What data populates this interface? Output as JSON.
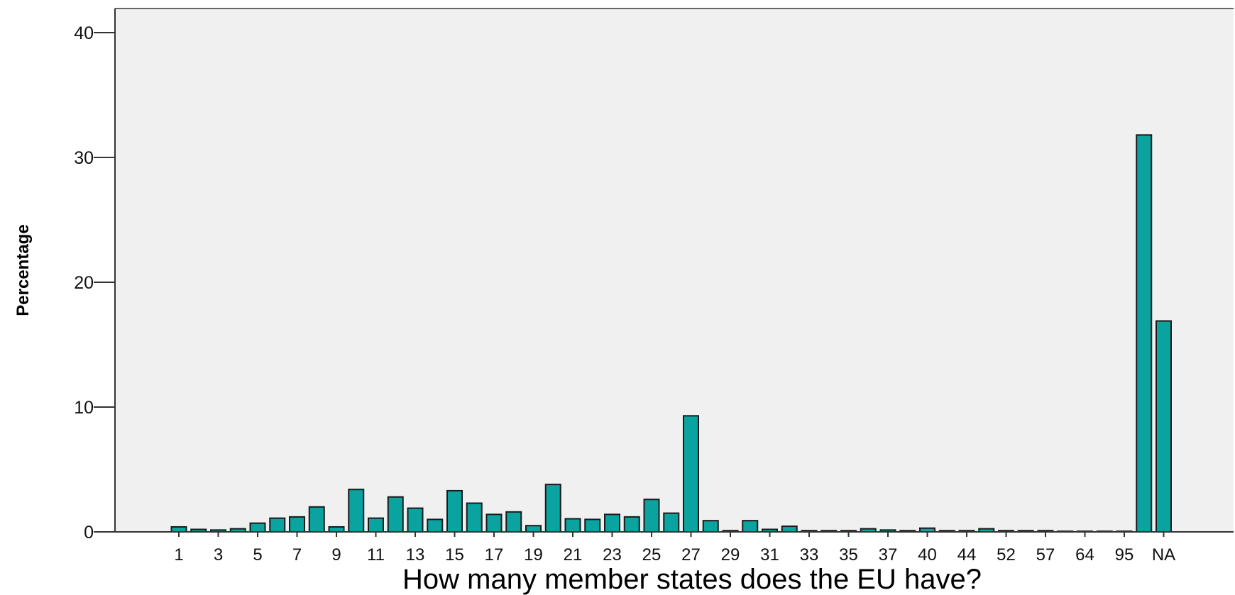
{
  "chart_data": {
    "type": "bar",
    "xlabel": "How many member states does the EU have?",
    "ylabel": "Percentage",
    "ylim": [
      0,
      42
    ],
    "yticks": [
      0,
      10,
      20,
      30,
      40
    ],
    "grid": false,
    "colors": {
      "bar": "#0aa39f",
      "bar_stroke": "#1a1a1a",
      "plot_bg": "#f0f0f0",
      "axis": "#333333"
    },
    "categories": [
      "1",
      "2",
      "3",
      "4",
      "5",
      "6",
      "7",
      "8",
      "9",
      "10",
      "11",
      "12",
      "13",
      "14",
      "15",
      "16",
      "17",
      "18",
      "19",
      "20",
      "21",
      "22",
      "23",
      "24",
      "25",
      "26",
      "27",
      "28",
      "29",
      "30",
      "31",
      "32",
      "33",
      "34",
      "35",
      "36",
      "37",
      "38",
      "40",
      "42",
      "44",
      "50",
      "52",
      "55",
      "57",
      "60",
      "64",
      "90",
      "95",
      "99",
      "NA"
    ],
    "x_tick_labels": [
      "1",
      "3",
      "5",
      "7",
      "9",
      "11",
      "13",
      "15",
      "17",
      "19",
      "21",
      "23",
      "25",
      "27",
      "29",
      "31",
      "33",
      "35",
      "37",
      "40",
      "44",
      "52",
      "57",
      "64",
      "95",
      "NA"
    ],
    "values": [
      0.4,
      0.2,
      0.15,
      0.25,
      0.7,
      1.1,
      1.2,
      2.0,
      0.4,
      3.4,
      1.1,
      2.8,
      1.9,
      1.0,
      3.3,
      2.3,
      1.4,
      1.6,
      0.5,
      3.8,
      1.05,
      1.0,
      1.4,
      1.2,
      2.6,
      1.5,
      9.3,
      0.9,
      0.1,
      0.9,
      0.2,
      0.45,
      0.1,
      0.1,
      0.1,
      0.25,
      0.15,
      0.1,
      0.3,
      0.1,
      0.1,
      0.25,
      0.1,
      0.1,
      0.1,
      0.05,
      0.05,
      0.05,
      0.05,
      31.8,
      16.9
    ]
  }
}
